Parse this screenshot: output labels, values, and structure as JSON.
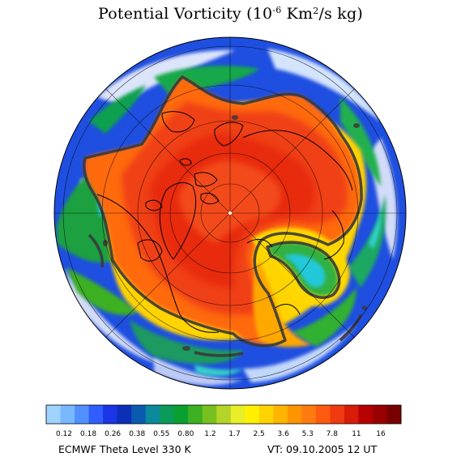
{
  "title": {
    "text": "Potential Vorticity (10",
    "exponent": "-6",
    "units": " Km",
    "units_sq": "2",
    "units_tail": "/s kg)"
  },
  "colorbar": {
    "ticks": [
      "0.12",
      "0.18",
      "0.26",
      "0.38",
      "0.55",
      "0.80",
      "1.2",
      "1.7",
      "2.5",
      "3.6",
      "5.3",
      "7.8",
      "11",
      "16"
    ],
    "colors": [
      "#9fd3ff",
      "#78b8ff",
      "#5090ff",
      "#2f5dff",
      "#1a34e6",
      "#0c2fb8",
      "#0a5ab0",
      "#0a8a9a",
      "#0a9a5a",
      "#0aa030",
      "#3cb020",
      "#78c020",
      "#b4d428",
      "#e8ee28",
      "#fff000",
      "#ffd400",
      "#ffb400",
      "#ff9400",
      "#ff7a10",
      "#ff5a10",
      "#f03a10",
      "#d81c08",
      "#b80000",
      "#980000",
      "#780000"
    ]
  },
  "map": {
    "projection": "north-polar-stereographic",
    "field": "potential-vorticity"
  },
  "footer": {
    "left": "ECMWF Theta Level 330 K",
    "right": "VT: 09.10.2005 12 UT"
  }
}
